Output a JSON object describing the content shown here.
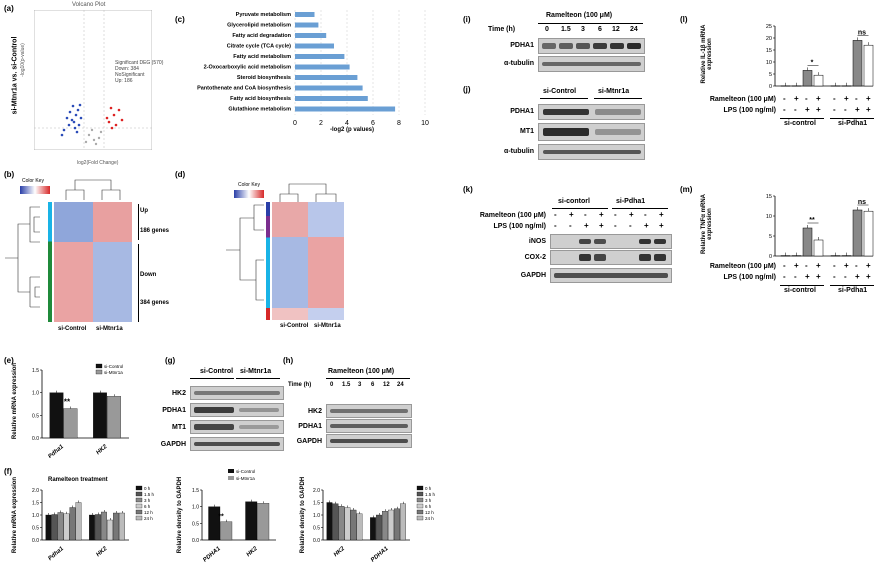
{
  "panels": {
    "a": "(a)",
    "b": "(b)",
    "c": "(c)",
    "d": "(d)",
    "e": "(e)",
    "f": "(f)",
    "g": "(g)",
    "h": "(h)",
    "i": "(i)",
    "j": "(j)",
    "k": "(k)",
    "l": "(l)",
    "m": "(m)"
  },
  "volcano": {
    "title": "Volcano Plot",
    "ylabel": "si-Mtnr1a vs. si-Control",
    "axis_y": "-log10(p-value)",
    "axis_x": "log2(Fold Change)",
    "legend_title": "Significant DEG (570)",
    "legend": [
      "Down: 384",
      "NoSignificant",
      "Up: 186"
    ]
  },
  "heatmap_b": {
    "color_key": "Color Key",
    "up": "Up",
    "up_count": "186 genes",
    "down": "Down",
    "down_count": "384 genes",
    "x_labels": [
      "si-Control",
      "si-Mtnr1a"
    ]
  },
  "heatmap_d": {
    "color_key": "Color Key",
    "x_labels": [
      "si-Control",
      "si-Mtnr1a"
    ]
  },
  "chart_c": {
    "xlabel": "-log2 (p values)"
  },
  "blot_i": {
    "title": "Ramelteon (100 μM)",
    "time_label": "Time (h)",
    "times": [
      "0",
      "1.5",
      "3",
      "6",
      "12",
      "24"
    ],
    "rows": [
      "PDHA1",
      "α-tubulin"
    ]
  },
  "blot_j": {
    "groups": [
      "si-Control",
      "si-Mtnr1a"
    ],
    "rows": [
      "PDHA1",
      "MT1",
      "α-tubulin"
    ]
  },
  "blot_k": {
    "groups": [
      "si-contorl",
      "si-Pdha1"
    ],
    "treat1": "Ramelteon (100 μM)",
    "treat2": "LPS (100 ng/ml)",
    "rows": [
      "iNOS",
      "COX-2",
      "GAPDH"
    ],
    "ram_signs": [
      "-",
      "+",
      "-",
      "+",
      "-",
      "+",
      "-",
      "+"
    ],
    "lps_signs": [
      "-",
      "-",
      "+",
      "+",
      "-",
      "-",
      "+",
      "+"
    ]
  },
  "blot_g": {
    "groups": [
      "si-Control",
      "si-Mtnr1a"
    ],
    "rows": [
      "HK2",
      "PDHA1",
      "MT1",
      "GAPDH"
    ]
  },
  "blot_h": {
    "title": "Ramelteon (100 μM)",
    "time_label": "Time (h)",
    "times": [
      "0",
      "1.5",
      "3",
      "6",
      "12",
      "24"
    ],
    "rows": [
      "HK2",
      "PDHA1",
      "GAPDH"
    ]
  },
  "chart_l": {
    "ylabel": "Relative IL-1β mRNA expression",
    "sig": [
      "*",
      "ns"
    ],
    "treat1": "Ramelteon (100 μM)",
    "treat2": "LPS (100 ng/ml)",
    "groups": [
      "si-control",
      "si-Pdha1"
    ]
  },
  "chart_m": {
    "ylabel": "Relative TNFα mRNA expression",
    "sig": [
      "**",
      "ns"
    ],
    "treat1": "Ramelteon (100 μM)",
    "treat2": "LPS (100 ng/ml)",
    "groups": [
      "si-control",
      "si-Pdha1"
    ]
  },
  "chart_e": {
    "ylabel": "Relative mRNA expression",
    "sig": "**"
  },
  "chart_f": {
    "title": "Ramelteon treatment",
    "ylabel": "Relative mRNA expression"
  },
  "chart_g2": {
    "ylabel": "Relative density to GAPDH",
    "sig": "**"
  },
  "chart_h2": {
    "ylabel": "Relative density to GAPDH"
  },
  "chart_data": [
    {
      "id": "c",
      "type": "bar",
      "orientation": "horizontal",
      "categories": [
        "Pyruvate metabolism",
        "Glycerolipid metabolism",
        "Fatty acid degradation",
        "Citrate cycle (TCA cycle)",
        "Fatty acid metabolism",
        "2-Oxocarboxylic acid metabolism",
        "Steroid biosynthesis",
        "Pantothenate and CoA biosynthesis",
        "Fatty acid biosynthesis",
        "Glutathione metabolism"
      ],
      "values": [
        1.5,
        1.8,
        2.4,
        3.0,
        3.8,
        4.2,
        4.8,
        5.2,
        5.6,
        7.7
      ],
      "xlim": [
        0,
        10
      ],
      "xticks": [
        "0",
        "2",
        "4",
        "6",
        "8",
        "10"
      ],
      "color": "#6a9fd4"
    },
    {
      "id": "e",
      "type": "bar",
      "categories": [
        "Pdha1",
        "HK2"
      ],
      "series": [
        {
          "name": "si-Control",
          "values": [
            1.0,
            1.0
          ],
          "color": "#111111"
        },
        {
          "name": "si-Mtnr1a",
          "values": [
            0.65,
            0.92
          ],
          "color": "#999999"
        }
      ],
      "ylim": [
        0,
        1.5
      ],
      "yticks": [
        "0.0",
        "0.5",
        "1.0",
        "1.5"
      ]
    },
    {
      "id": "f",
      "type": "bar",
      "categories": [
        "Pdha1",
        "HK2"
      ],
      "series": [
        {
          "name": "0 h",
          "values": [
            1.0,
            1.0
          ],
          "color": "#111111"
        },
        {
          "name": "1.5 h",
          "values": [
            1.02,
            1.02
          ],
          "color": "#555555"
        },
        {
          "name": "3 h",
          "values": [
            1.1,
            1.12
          ],
          "color": "#888888"
        },
        {
          "name": "6 h",
          "values": [
            1.05,
            0.8
          ],
          "color": "#cccccc"
        },
        {
          "name": "12 h",
          "values": [
            1.3,
            1.08
          ],
          "color": "#777777"
        },
        {
          "name": "24 h",
          "values": [
            1.5,
            1.08
          ],
          "color": "#bbbbbb"
        }
      ],
      "ylim": [
        0,
        2.0
      ],
      "yticks": [
        "0.0",
        "0.5",
        "1.0",
        "1.5",
        "2.0"
      ]
    },
    {
      "id": "g2",
      "type": "bar",
      "categories": [
        "PDHA1",
        "HK2"
      ],
      "series": [
        {
          "name": "si-Control",
          "values": [
            1.0,
            1.15
          ],
          "color": "#111111"
        },
        {
          "name": "si-Mtnr1a",
          "values": [
            0.55,
            1.1
          ],
          "color": "#999999"
        }
      ],
      "ylim": [
        0,
        1.5
      ],
      "yticks": [
        "0.0",
        "0.5",
        "1.0",
        "1.5"
      ]
    },
    {
      "id": "h2",
      "type": "bar",
      "categories": [
        "HK2",
        "PDHA1"
      ],
      "series": [
        {
          "name": "0 h",
          "values": [
            1.5,
            0.9
          ],
          "color": "#111111"
        },
        {
          "name": "1.5 h",
          "values": [
            1.45,
            1.0
          ],
          "color": "#555555"
        },
        {
          "name": "3 h",
          "values": [
            1.35,
            1.15
          ],
          "color": "#888888"
        },
        {
          "name": "6 h",
          "values": [
            1.3,
            1.2
          ],
          "color": "#cccccc"
        },
        {
          "name": "12 h",
          "values": [
            1.2,
            1.25
          ],
          "color": "#777777"
        },
        {
          "name": "24 h",
          "values": [
            1.05,
            1.45
          ],
          "color": "#bbbbbb"
        }
      ],
      "ylim": [
        0,
        2.0
      ],
      "yticks": [
        "0.0",
        "0.5",
        "1.0",
        "1.5",
        "2.0"
      ]
    },
    {
      "id": "l",
      "type": "bar",
      "values": [
        0.1,
        0.1,
        6.5,
        4.5,
        0.1,
        0.1,
        19.0,
        17.0
      ],
      "colors": [
        "#111111",
        "#ffffff",
        "#888888",
        "#ffffff",
        "#111111",
        "#ffffff",
        "#888888",
        "#ffffff"
      ],
      "ylim": [
        0,
        25
      ],
      "yticks": [
        "0",
        "5",
        "10",
        "15",
        "20",
        "25"
      ]
    },
    {
      "id": "m",
      "type": "bar",
      "values": [
        0.1,
        0.1,
        7.0,
        4.0,
        0.1,
        0.1,
        11.5,
        11.2
      ],
      "colors": [
        "#111111",
        "#ffffff",
        "#888888",
        "#ffffff",
        "#111111",
        "#ffffff",
        "#888888",
        "#ffffff"
      ],
      "ylim": [
        0,
        15
      ],
      "yticks": [
        "0",
        "5",
        "10",
        "15"
      ]
    }
  ]
}
